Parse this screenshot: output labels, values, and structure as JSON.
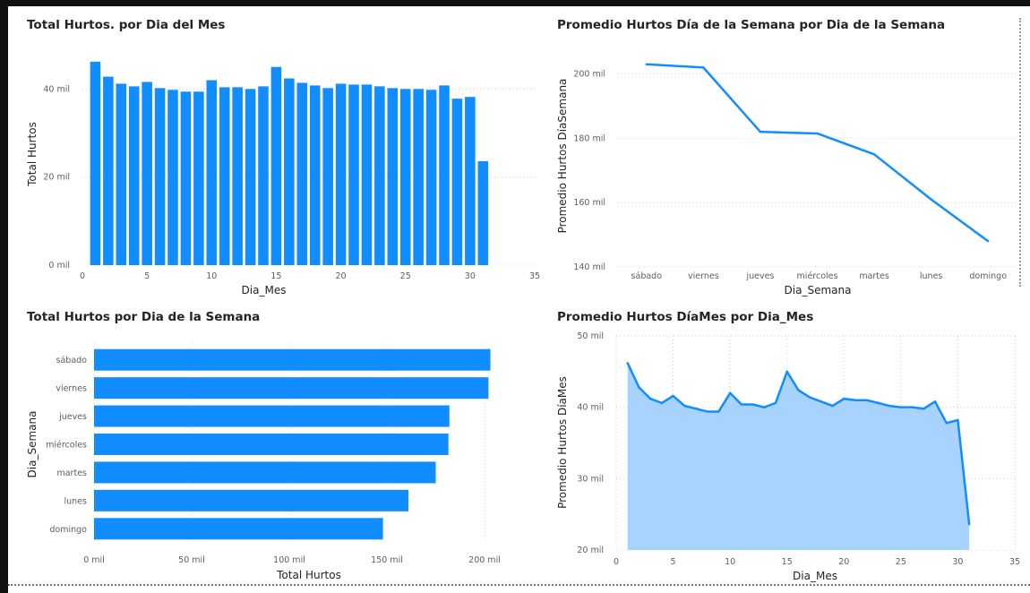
{
  "chart_data": [
    {
      "id": "c1",
      "type": "bar",
      "title": "Total Hurtos. por Dia del Mes",
      "xlabel": "Dia_Mes",
      "ylabel": "Total Hurtos",
      "xticks": [
        "0",
        "5",
        "10",
        "15",
        "20",
        "25",
        "30",
        "35"
      ],
      "yticks": [
        "0 mil",
        "20 mil",
        "40 mil"
      ],
      "xlim": [
        0,
        35
      ],
      "ylim": [
        0,
        48
      ],
      "x": [
        1,
        2,
        3,
        4,
        5,
        6,
        7,
        8,
        9,
        10,
        11,
        12,
        13,
        14,
        15,
        16,
        17,
        18,
        19,
        20,
        21,
        22,
        23,
        24,
        25,
        26,
        27,
        28,
        29,
        30,
        31
      ],
      "values": [
        46.2,
        42.8,
        41.2,
        40.6,
        41.6,
        40.2,
        39.8,
        39.4,
        39.4,
        42.0,
        40.4,
        40.4,
        40.0,
        40.6,
        45.0,
        42.4,
        41.4,
        40.8,
        40.2,
        41.2,
        41.0,
        41.0,
        40.6,
        40.2,
        40.0,
        40.0,
        39.8,
        40.8,
        37.8,
        38.2,
        23.6
      ],
      "color": "#118dff"
    },
    {
      "id": "c2",
      "type": "line",
      "title": "Promedio Hurtos Día de la Semana por Dia de la Semana",
      "xlabel": "Dia_Semana",
      "ylabel": "Promedio Hurtos DíaSemana",
      "categories": [
        "sábado",
        "viernes",
        "jueves",
        "miércoles",
        "martes",
        "lunes",
        "domingo"
      ],
      "values": [
        203,
        202,
        182,
        181.5,
        175,
        161,
        148
      ],
      "yticks": [
        "140 mil",
        "160 mil",
        "180 mil",
        "200 mil"
      ],
      "ylim": [
        140,
        206
      ],
      "color": "#118dff"
    },
    {
      "id": "c3",
      "type": "bar",
      "orientation": "horizontal",
      "title": "Total Hurtos por Dia de la Semana",
      "xlabel": "Total Hurtos",
      "ylabel": "Dia_Semana",
      "categories": [
        "sábado",
        "viernes",
        "jueves",
        "miércoles",
        "martes",
        "lunes",
        "domingo"
      ],
      "values": [
        203,
        202,
        182,
        181.5,
        175,
        161,
        148
      ],
      "xticks": [
        "0 mil",
        "50 mil",
        "100 mil",
        "150 mil",
        "200 mil"
      ],
      "xlim": [
        0,
        200
      ],
      "color": "#118dff"
    },
    {
      "id": "c4",
      "type": "area",
      "title": "Promedio Hurtos DíaMes por Dia_Mes",
      "xlabel": "Dia_Mes",
      "ylabel": "Promedio Hurtos DíaMes",
      "xticks": [
        "0",
        "5",
        "10",
        "15",
        "20",
        "25",
        "30",
        "35"
      ],
      "yticks": [
        "20 mil",
        "30 mil",
        "40 mil",
        "50 mil"
      ],
      "xlim": [
        0,
        35
      ],
      "ylim": [
        20,
        50
      ],
      "x": [
        1,
        2,
        3,
        4,
        5,
        6,
        7,
        8,
        9,
        10,
        11,
        12,
        13,
        14,
        15,
        16,
        17,
        18,
        19,
        20,
        21,
        22,
        23,
        24,
        25,
        26,
        27,
        28,
        29,
        30,
        31
      ],
      "values": [
        46.2,
        42.8,
        41.2,
        40.6,
        41.6,
        40.2,
        39.8,
        39.4,
        39.4,
        42.0,
        40.4,
        40.4,
        40.0,
        40.6,
        45.0,
        42.4,
        41.4,
        40.8,
        40.2,
        41.2,
        41.0,
        41.0,
        40.6,
        40.2,
        40.0,
        40.0,
        39.8,
        40.8,
        37.8,
        38.2,
        23.6
      ],
      "color": "#118dff",
      "fill": "#a3d1ff"
    }
  ]
}
